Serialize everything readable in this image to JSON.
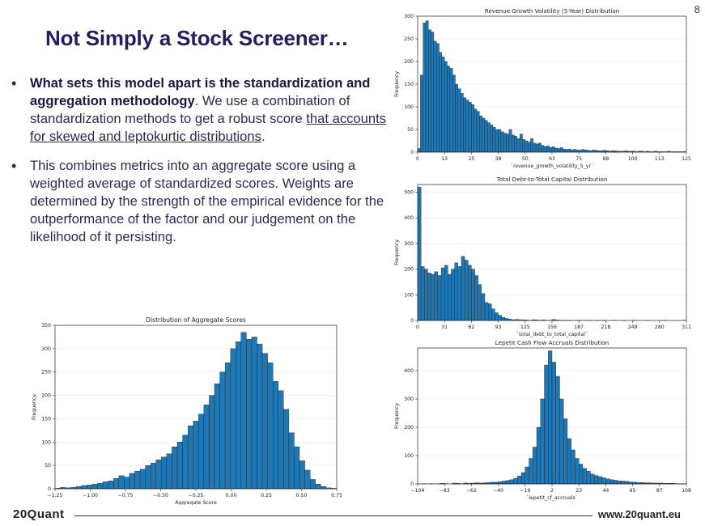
{
  "page_number": "8",
  "title": "Not Simply a Stock Screener…",
  "bullets": {
    "b1": {
      "bold": "What sets this model apart is the standardization and aggregation methodology",
      "text": ". We use a combination of standardization methods to get a robust score ",
      "link": "that accounts for skewed and leptokurtic distributions",
      "end": "."
    },
    "b2": {
      "text": "This combines metrics into an aggregate score using a weighted average of standardized scores. Weights are determined by the strength of the empirical evidence for the outperformance of the factor and our judgement on the likelihood of it persisting."
    }
  },
  "chart_data": [
    {
      "id": "revenue",
      "type": "bar",
      "title": "Revenue Growth Volatility (5-Year) Distribution",
      "xlabel": "`revenue_growth_volatility_5_yr`",
      "ylabel": "Frequency",
      "xlim": [
        0,
        125
      ],
      "ylim": [
        0,
        300
      ],
      "xticks": [
        "0",
        "13",
        "25",
        "38",
        "50",
        "63",
        "75",
        "88",
        "100",
        "113",
        "125"
      ],
      "yticks": [
        "0",
        "50",
        "100",
        "150",
        "200",
        "250",
        "300"
      ],
      "color": "#1f77b4",
      "values": [
        8,
        170,
        285,
        290,
        270,
        265,
        245,
        240,
        220,
        210,
        200,
        190,
        185,
        170,
        150,
        140,
        130,
        120,
        115,
        110,
        105,
        95,
        90,
        80,
        75,
        70,
        65,
        60,
        55,
        50,
        50,
        45,
        42,
        40,
        50,
        38,
        35,
        30,
        40,
        28,
        25,
        22,
        30,
        20,
        18,
        20,
        15,
        12,
        14,
        10,
        12,
        9,
        8,
        10,
        7,
        6,
        7,
        5,
        6,
        5,
        4,
        6,
        5,
        4,
        3,
        5,
        4,
        3,
        3,
        4,
        3,
        2,
        3,
        3,
        2,
        2,
        2,
        3,
        2,
        2,
        2,
        1,
        2,
        2,
        1,
        2,
        1,
        1,
        2,
        1,
        1,
        1,
        1,
        2,
        1,
        1,
        1,
        1,
        1,
        1
      ]
    },
    {
      "id": "debt",
      "type": "bar",
      "title": "Total Debt-to-Total Capital Distribution",
      "xlabel": "`total_debt_to_total_capital`",
      "ylabel": "Frequency",
      "xlim": [
        0,
        311
      ],
      "ylim": [
        0,
        530
      ],
      "xticks": [
        "0",
        "31",
        "62",
        "93",
        "125",
        "156",
        "187",
        "218",
        "249",
        "280",
        "311"
      ],
      "yticks": [
        "0",
        "100",
        "200",
        "300",
        "400",
        "500"
      ],
      "color": "#1f77b4",
      "values": [
        520,
        210,
        200,
        185,
        180,
        190,
        175,
        205,
        215,
        180,
        200,
        225,
        210,
        250,
        235,
        215,
        200,
        175,
        140,
        105,
        70,
        65,
        45,
        30,
        20,
        12,
        8,
        5,
        3,
        4,
        3,
        2,
        2,
        1,
        3,
        2,
        1,
        2,
        1,
        1,
        4,
        2,
        1,
        1,
        1,
        1,
        0,
        1,
        1,
        0,
        1,
        1,
        0,
        1,
        0,
        1,
        0,
        0,
        1,
        0,
        0,
        1,
        0,
        0,
        1,
        0,
        0,
        0,
        1,
        0,
        0,
        0,
        0,
        1,
        0,
        0,
        0,
        0,
        0,
        1
      ]
    },
    {
      "id": "accruals",
      "type": "bar",
      "title": "Lepetit Cash Flow Accruals Distribution",
      "xlabel": "`lepetit_cf_accruals`",
      "ylabel": "Frequency",
      "xlim": [
        -104,
        108
      ],
      "ylim": [
        0,
        480
      ],
      "xticks": [
        "−104",
        "−83",
        "−62",
        "−40",
        "−19",
        "2",
        "23",
        "44",
        "65",
        "87",
        "108"
      ],
      "yticks": [
        "0",
        "100",
        "200",
        "300",
        "400"
      ],
      "color": "#1f77b4",
      "values": [
        0,
        1,
        0,
        1,
        0,
        1,
        2,
        1,
        0,
        3,
        2,
        1,
        3,
        2,
        3,
        4,
        3,
        4,
        5,
        6,
        6,
        8,
        10,
        12,
        15,
        20,
        28,
        40,
        60,
        90,
        130,
        200,
        300,
        420,
        470,
        430,
        380,
        300,
        230,
        160,
        120,
        90,
        70,
        55,
        45,
        35,
        30,
        26,
        22,
        18,
        15,
        13,
        11,
        10,
        9,
        7,
        6,
        5,
        5,
        4,
        4,
        3,
        3,
        3,
        2,
        2,
        2,
        1,
        1,
        1
      ]
    },
    {
      "id": "aggregate",
      "type": "bar",
      "title": "Distribution of Aggregate Scores",
      "xlabel": "Aggregate Score",
      "ylabel": "Frequency",
      "xlim": [
        -1.37,
        0.82
      ],
      "ylim": [
        0,
        350
      ],
      "xticks": [
        "−1.25",
        "−1.00",
        "−0.75",
        "−0.50",
        "−0.25",
        "0.00",
        "0.25",
        "0.50",
        "0.75"
      ],
      "yticks": [
        "0",
        "50",
        "100",
        "150",
        "200",
        "250",
        "300",
        "350"
      ],
      "color": "#1f77b4",
      "values": [
        1,
        3,
        2,
        3,
        5,
        7,
        8,
        10,
        12,
        15,
        17,
        22,
        28,
        25,
        33,
        38,
        42,
        50,
        55,
        62,
        68,
        75,
        90,
        100,
        115,
        135,
        145,
        160,
        180,
        200,
        225,
        250,
        270,
        300,
        315,
        335,
        320,
        325,
        310,
        290,
        270,
        230,
        210,
        170,
        120,
        90,
        60,
        40,
        20,
        10,
        5,
        2,
        1
      ]
    }
  ],
  "footer": {
    "brand": "20Quant",
    "url": "www.20quant.eu"
  }
}
